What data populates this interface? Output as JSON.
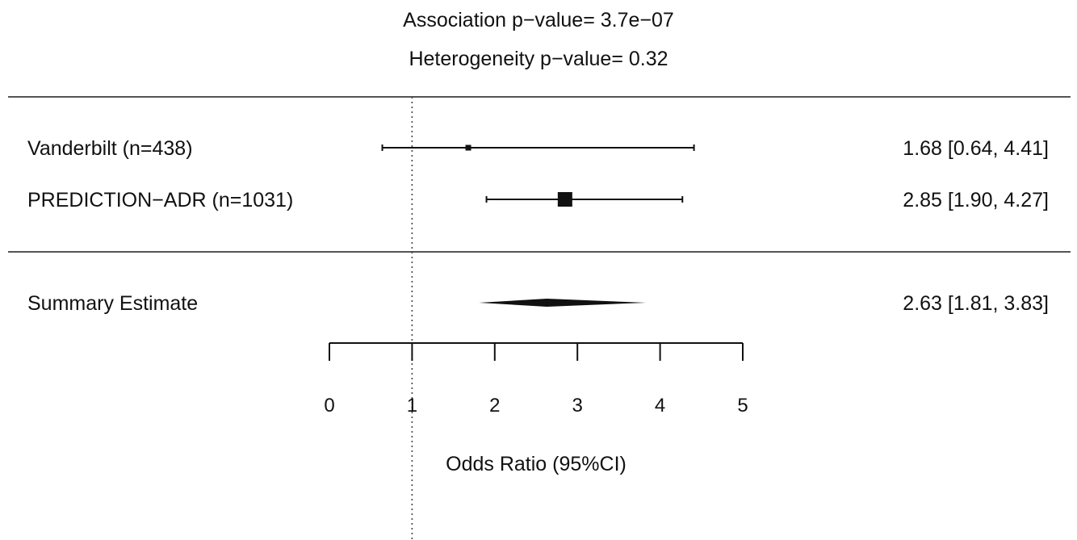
{
  "header": {
    "association": "Association p−value= 3.7e−07",
    "heterogeneity": "Heterogeneity p−value= 0.32"
  },
  "chart_data": {
    "type": "forest",
    "studies": [
      {
        "name": "Vanderbilt (n=438)",
        "or": 1.68,
        "lower": 0.64,
        "upper": 4.41,
        "label": "1.68 [0.64, 4.41]",
        "weight": "small"
      },
      {
        "name": "PREDICTION−ADR (n=1031)",
        "or": 2.85,
        "lower": 1.9,
        "upper": 4.27,
        "label": "2.85 [1.90, 4.27]",
        "weight": "large"
      }
    ],
    "summary": {
      "name": "Summary Estimate",
      "or": 2.63,
      "lower": 1.81,
      "upper": 3.83,
      "label": "2.63 [1.81, 3.83]"
    },
    "reference_line": 1,
    "xlim": [
      0,
      5
    ],
    "xticks": [
      "0",
      "1",
      "2",
      "3",
      "4",
      "5"
    ],
    "xlabel": "Odds Ratio (95%CI)"
  }
}
